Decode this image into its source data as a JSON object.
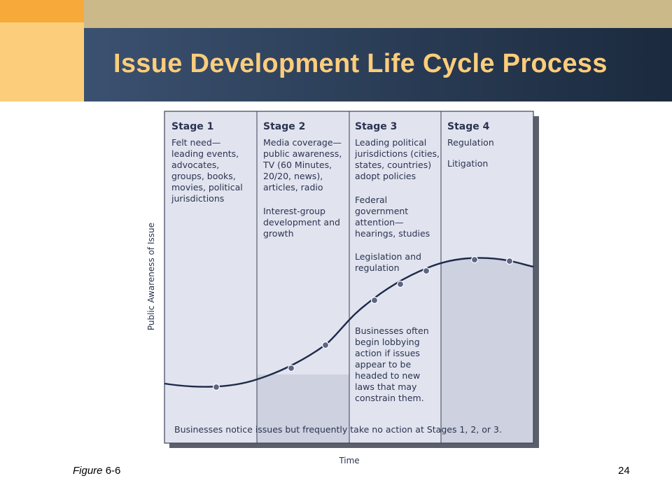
{
  "slide": {
    "title": "Issue Development Life Cycle Process",
    "figure_label_italic": "Figure",
    "figure_label_number": " 6-6",
    "page_number": "24"
  },
  "diagram": {
    "y_axis_label": "Public Awareness of Issue",
    "x_axis_label": "Time",
    "bottom_note": "Businesses notice issues but frequently take no action at Stages 1, 2, or 3.",
    "stages": [
      {
        "title": "Stage 1",
        "lines": [
          "Felt need—",
          "leading events,",
          "advocates,",
          "groups, books,",
          "movies, political",
          "jurisdictions"
        ]
      },
      {
        "title": "Stage 2",
        "lines": [
          "Media coverage—",
          "public awareness,",
          "TV (60 Minutes,",
          "20/20, news),",
          "articles, radio",
          "",
          "Interest-group",
          "development and",
          "growth"
        ]
      },
      {
        "title": "Stage 3",
        "lines": [
          "Leading political",
          "jurisdictions (cities,",
          "states, countries)",
          "adopt policies",
          "",
          "Federal",
          "government",
          "attention—",
          "hearings, studies",
          "",
          "Legislation and",
          "regulation"
        ],
        "lower_lines": [
          "Businesses often",
          "begin lobbying",
          "action if issues",
          "appear to be",
          "headed to new",
          "laws that may",
          "constrain them."
        ]
      },
      {
        "title": "Stage 4",
        "lines": [
          "Regulation",
          "",
          "Litigation"
        ]
      }
    ],
    "colors": {
      "panel_light": "#e1e4ef",
      "panel_shaded": "#cdd1e0",
      "curve": "#1e2a4a",
      "point_fill": "#5e6584",
      "border": "#3a4256",
      "shadow": "#5b5f6b",
      "text": "#2b3350"
    }
  }
}
